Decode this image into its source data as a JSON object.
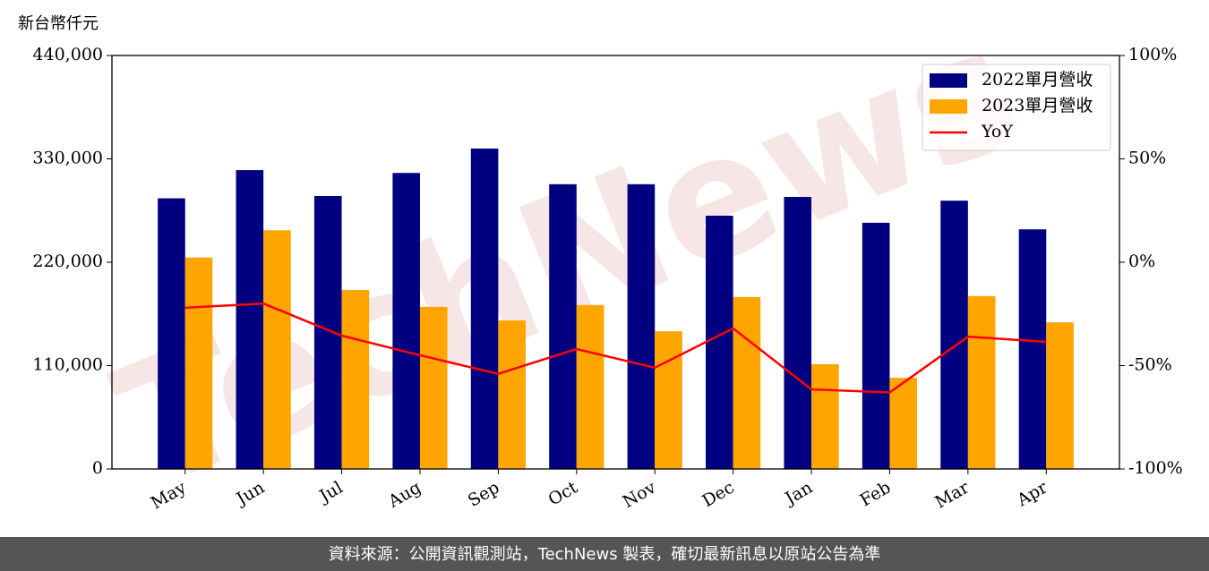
{
  "chart_data": {
    "type": "bar",
    "y_label": "新台幣仟元",
    "categories": [
      "May",
      "Jun",
      "Jul",
      "Aug",
      "Sep",
      "Oct",
      "Nov",
      "Dec",
      "Jan",
      "Feb",
      "Mar",
      "Apr"
    ],
    "series": [
      {
        "name": "2022單月營收",
        "color": "#000080",
        "values": [
          288000,
          318000,
          290500,
          315000,
          341000,
          303000,
          303000,
          269500,
          289500,
          262000,
          285500,
          255000
        ]
      },
      {
        "name": "2023單月營收",
        "color": "#ffa500",
        "values": [
          225000,
          254000,
          190500,
          172500,
          158000,
          174500,
          146500,
          183000,
          111500,
          97000,
          184000,
          156000
        ]
      },
      {
        "name": "YoY",
        "color": "#ff0000",
        "axis": "y2",
        "type": "line",
        "values": [
          -22,
          -20,
          -35.5,
          -45,
          -54,
          -42,
          -51,
          -32,
          -61.5,
          -63,
          -36,
          -38.5
        ]
      }
    ],
    "ylim": [
      0,
      440000
    ],
    "yticks": [
      0,
      {
        "value": 110000,
        "label": "110,000"
      },
      {
        "value": 220000,
        "label": "220,000"
      },
      {
        "value": 330000,
        "label": "330,000"
      },
      {
        "value": 440000,
        "label": "440,000"
      }
    ],
    "y2lim": [
      -100,
      100
    ],
    "y2ticks": [
      {
        "value": -100,
        "label": "-100%"
      },
      {
        "value": -50,
        "label": "-50%"
      },
      {
        "value": 0,
        "label": "0%"
      },
      {
        "value": 50,
        "label": "50%"
      },
      {
        "value": 100,
        "label": "100%"
      }
    ],
    "legend": "upper right",
    "watermark": "TechNews",
    "footer": "資料來源：公開資訊觀測站，TechNews 製表，確切最新訊息以原站公告為準"
  }
}
